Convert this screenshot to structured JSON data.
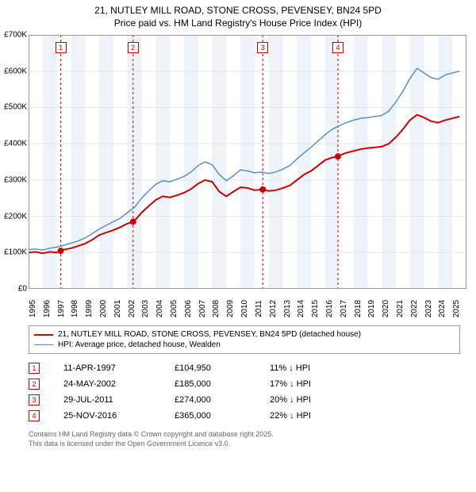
{
  "title": "21, NUTLEY MILL ROAD, STONE CROSS, PEVENSEY, BN24 5PD",
  "subtitle": "Price paid vs. HM Land Registry's House Price Index (HPI)",
  "chart": {
    "type": "line",
    "background_color": "#ffffff",
    "altband_color": "#eef3fa",
    "grid_color": "#e5e5e5",
    "x_min": 1995,
    "x_max": 2025.999,
    "x_tick_step": 1,
    "y_min": 0,
    "y_max": 700000,
    "y_tick_step": 100000,
    "y_tick_labels": [
      "£0",
      "£100K",
      "£200K",
      "£300K",
      "£400K",
      "£500K",
      "£600K",
      "£700K"
    ],
    "x_tick_labels": [
      "1995",
      "1996",
      "1997",
      "1998",
      "1999",
      "2000",
      "2001",
      "2002",
      "2003",
      "2004",
      "2005",
      "2006",
      "2007",
      "2008",
      "2009",
      "2010",
      "2011",
      "2012",
      "2013",
      "2014",
      "2015",
      "2016",
      "2017",
      "2018",
      "2019",
      "2020",
      "2021",
      "2022",
      "2023",
      "2024",
      "2025"
    ],
    "marker_line_color": "#cc0000",
    "marker_line_dash": "3,3",
    "series": [
      {
        "name": "price_paid",
        "label": "21, NUTLEY MILL ROAD, STONE CROSS, PEVENSEY, BN24 5PD (detached house)",
        "color": "#cc0000",
        "line_width": 2,
        "points": [
          [
            1995.0,
            100000
          ],
          [
            1995.5,
            102000
          ],
          [
            1996.0,
            98000
          ],
          [
            1996.5,
            102000
          ],
          [
            1997.0,
            100000
          ],
          [
            1997.28,
            104950
          ],
          [
            1997.5,
            108000
          ],
          [
            1998.0,
            112000
          ],
          [
            1998.5,
            118000
          ],
          [
            1999.0,
            125000
          ],
          [
            1999.5,
            135000
          ],
          [
            2000.0,
            148000
          ],
          [
            2000.5,
            155000
          ],
          [
            2001.0,
            162000
          ],
          [
            2001.5,
            170000
          ],
          [
            2002.0,
            180000
          ],
          [
            2002.4,
            185000
          ],
          [
            2002.5,
            188000
          ],
          [
            2003.0,
            210000
          ],
          [
            2003.5,
            228000
          ],
          [
            2004.0,
            245000
          ],
          [
            2004.5,
            255000
          ],
          [
            2005.0,
            252000
          ],
          [
            2005.5,
            258000
          ],
          [
            2006.0,
            265000
          ],
          [
            2006.5,
            275000
          ],
          [
            2007.0,
            290000
          ],
          [
            2007.5,
            300000
          ],
          [
            2008.0,
            295000
          ],
          [
            2008.5,
            268000
          ],
          [
            2009.0,
            255000
          ],
          [
            2009.5,
            268000
          ],
          [
            2010.0,
            280000
          ],
          [
            2010.5,
            278000
          ],
          [
            2011.0,
            272000
          ],
          [
            2011.58,
            274000
          ],
          [
            2012.0,
            270000
          ],
          [
            2012.5,
            272000
          ],
          [
            2013.0,
            278000
          ],
          [
            2013.5,
            285000
          ],
          [
            2014.0,
            300000
          ],
          [
            2014.5,
            315000
          ],
          [
            2015.0,
            325000
          ],
          [
            2015.5,
            340000
          ],
          [
            2016.0,
            355000
          ],
          [
            2016.5,
            362000
          ],
          [
            2016.9,
            365000
          ],
          [
            2017.0,
            368000
          ],
          [
            2017.5,
            375000
          ],
          [
            2018.0,
            380000
          ],
          [
            2018.5,
            385000
          ],
          [
            2019.0,
            388000
          ],
          [
            2019.5,
            390000
          ],
          [
            2020.0,
            392000
          ],
          [
            2020.5,
            400000
          ],
          [
            2021.0,
            418000
          ],
          [
            2021.5,
            440000
          ],
          [
            2022.0,
            465000
          ],
          [
            2022.5,
            480000
          ],
          [
            2023.0,
            472000
          ],
          [
            2023.5,
            462000
          ],
          [
            2024.0,
            458000
          ],
          [
            2024.5,
            465000
          ],
          [
            2025.0,
            470000
          ],
          [
            2025.5,
            475000
          ]
        ]
      },
      {
        "name": "hpi",
        "label": "HPI: Average price, detached house, Wealden",
        "color": "#5b8fc7",
        "line_width": 1.5,
        "points": [
          [
            1995.0,
            108000
          ],
          [
            1995.5,
            110000
          ],
          [
            1996.0,
            107000
          ],
          [
            1996.5,
            112000
          ],
          [
            1997.0,
            115000
          ],
          [
            1997.5,
            120000
          ],
          [
            1998.0,
            126000
          ],
          [
            1998.5,
            132000
          ],
          [
            1999.0,
            140000
          ],
          [
            1999.5,
            152000
          ],
          [
            2000.0,
            165000
          ],
          [
            2000.5,
            175000
          ],
          [
            2001.0,
            185000
          ],
          [
            2001.5,
            195000
          ],
          [
            2002.0,
            210000
          ],
          [
            2002.5,
            225000
          ],
          [
            2003.0,
            250000
          ],
          [
            2003.5,
            270000
          ],
          [
            2004.0,
            288000
          ],
          [
            2004.5,
            298000
          ],
          [
            2005.0,
            295000
          ],
          [
            2005.5,
            302000
          ],
          [
            2006.0,
            310000
          ],
          [
            2006.5,
            322000
          ],
          [
            2007.0,
            340000
          ],
          [
            2007.5,
            350000
          ],
          [
            2008.0,
            342000
          ],
          [
            2008.5,
            315000
          ],
          [
            2009.0,
            298000
          ],
          [
            2009.5,
            312000
          ],
          [
            2010.0,
            328000
          ],
          [
            2010.5,
            325000
          ],
          [
            2011.0,
            320000
          ],
          [
            2011.5,
            322000
          ],
          [
            2012.0,
            318000
          ],
          [
            2012.5,
            322000
          ],
          [
            2013.0,
            330000
          ],
          [
            2013.5,
            340000
          ],
          [
            2014.0,
            358000
          ],
          [
            2014.5,
            375000
          ],
          [
            2015.0,
            390000
          ],
          [
            2015.5,
            408000
          ],
          [
            2016.0,
            425000
          ],
          [
            2016.5,
            440000
          ],
          [
            2017.0,
            450000
          ],
          [
            2017.5,
            458000
          ],
          [
            2018.0,
            465000
          ],
          [
            2018.5,
            470000
          ],
          [
            2019.0,
            472000
          ],
          [
            2019.5,
            475000
          ],
          [
            2020.0,
            478000
          ],
          [
            2020.5,
            490000
          ],
          [
            2021.0,
            515000
          ],
          [
            2021.5,
            545000
          ],
          [
            2022.0,
            580000
          ],
          [
            2022.5,
            608000
          ],
          [
            2023.0,
            595000
          ],
          [
            2023.5,
            582000
          ],
          [
            2024.0,
            578000
          ],
          [
            2024.5,
            590000
          ],
          [
            2025.0,
            595000
          ],
          [
            2025.5,
            600000
          ]
        ]
      }
    ],
    "sale_markers": [
      {
        "n": 1,
        "x": 1997.28,
        "y": 104950
      },
      {
        "n": 2,
        "x": 2002.4,
        "y": 185000
      },
      {
        "n": 3,
        "x": 2011.58,
        "y": 274000
      },
      {
        "n": 4,
        "x": 2016.9,
        "y": 365000
      }
    ]
  },
  "legend": [
    {
      "color": "#cc0000",
      "width": 2,
      "label": "21, NUTLEY MILL ROAD, STONE CROSS, PEVENSEY, BN24 5PD (detached house)"
    },
    {
      "color": "#5b8fc7",
      "width": 1.5,
      "label": "HPI: Average price, detached house, Wealden"
    }
  ],
  "sales": [
    {
      "n": "1",
      "date": "11-APR-1997",
      "price": "£104,950",
      "diff": "11% ↓ HPI"
    },
    {
      "n": "2",
      "date": "24-MAY-2002",
      "price": "£185,000",
      "diff": "17% ↓ HPI"
    },
    {
      "n": "3",
      "date": "29-JUL-2011",
      "price": "£274,000",
      "diff": "20% ↓ HPI"
    },
    {
      "n": "4",
      "date": "25-NOV-2016",
      "price": "£365,000",
      "diff": "22% ↓ HPI"
    }
  ],
  "footer_line1": "Contains HM Land Registry data © Crown copyright and database right 2025.",
  "footer_line2": "This data is licensed under the Open Government Licence v3.0."
}
